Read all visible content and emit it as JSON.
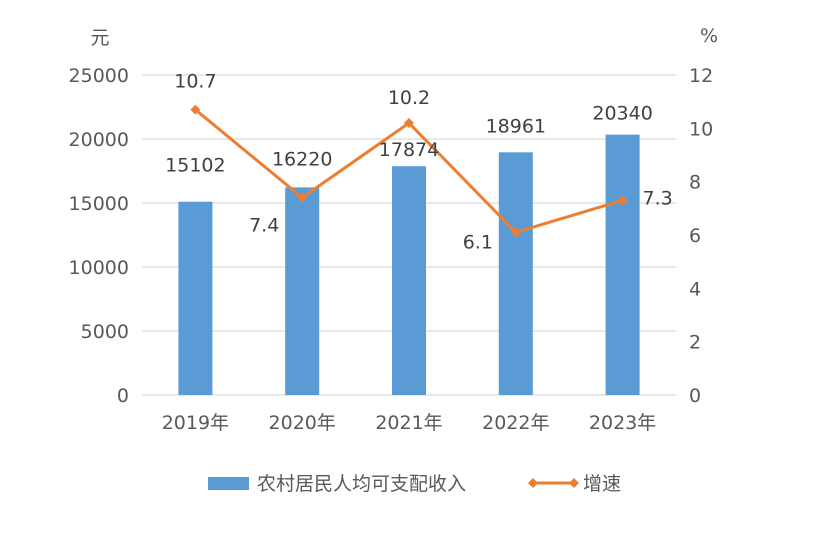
{
  "chart_data": {
    "type": "bar+line",
    "categories": [
      "2019年",
      "2020年",
      "2021年",
      "2022年",
      "2023年"
    ],
    "series": [
      {
        "name": "农村居民人均可支配收入",
        "type": "bar",
        "axis": "left",
        "values": [
          15102,
          16220,
          17874,
          18961,
          20340
        ],
        "labels": [
          "15102",
          "16220",
          "17874",
          "18961",
          "20340"
        ],
        "color": "#5B9BD5"
      },
      {
        "name": "增速",
        "type": "line",
        "axis": "right",
        "marker": "diamond",
        "values": [
          10.7,
          7.4,
          10.2,
          6.1,
          7.3
        ],
        "labels": [
          "10.7",
          "7.4",
          "10.2",
          "6.1",
          "7.3"
        ],
        "color": "#ED7D31"
      }
    ],
    "left_axis": {
      "unit": "元",
      "ylim": [
        0,
        25000
      ],
      "ticks": [
        "0",
        "5000",
        "10000",
        "15000",
        "20000",
        "25000"
      ]
    },
    "right_axis": {
      "unit": "%",
      "ylim": [
        0,
        12
      ],
      "ticks": [
        "0",
        "2",
        "4",
        "6",
        "8",
        "10",
        "12"
      ]
    },
    "grid": true,
    "legend": "bottom"
  }
}
